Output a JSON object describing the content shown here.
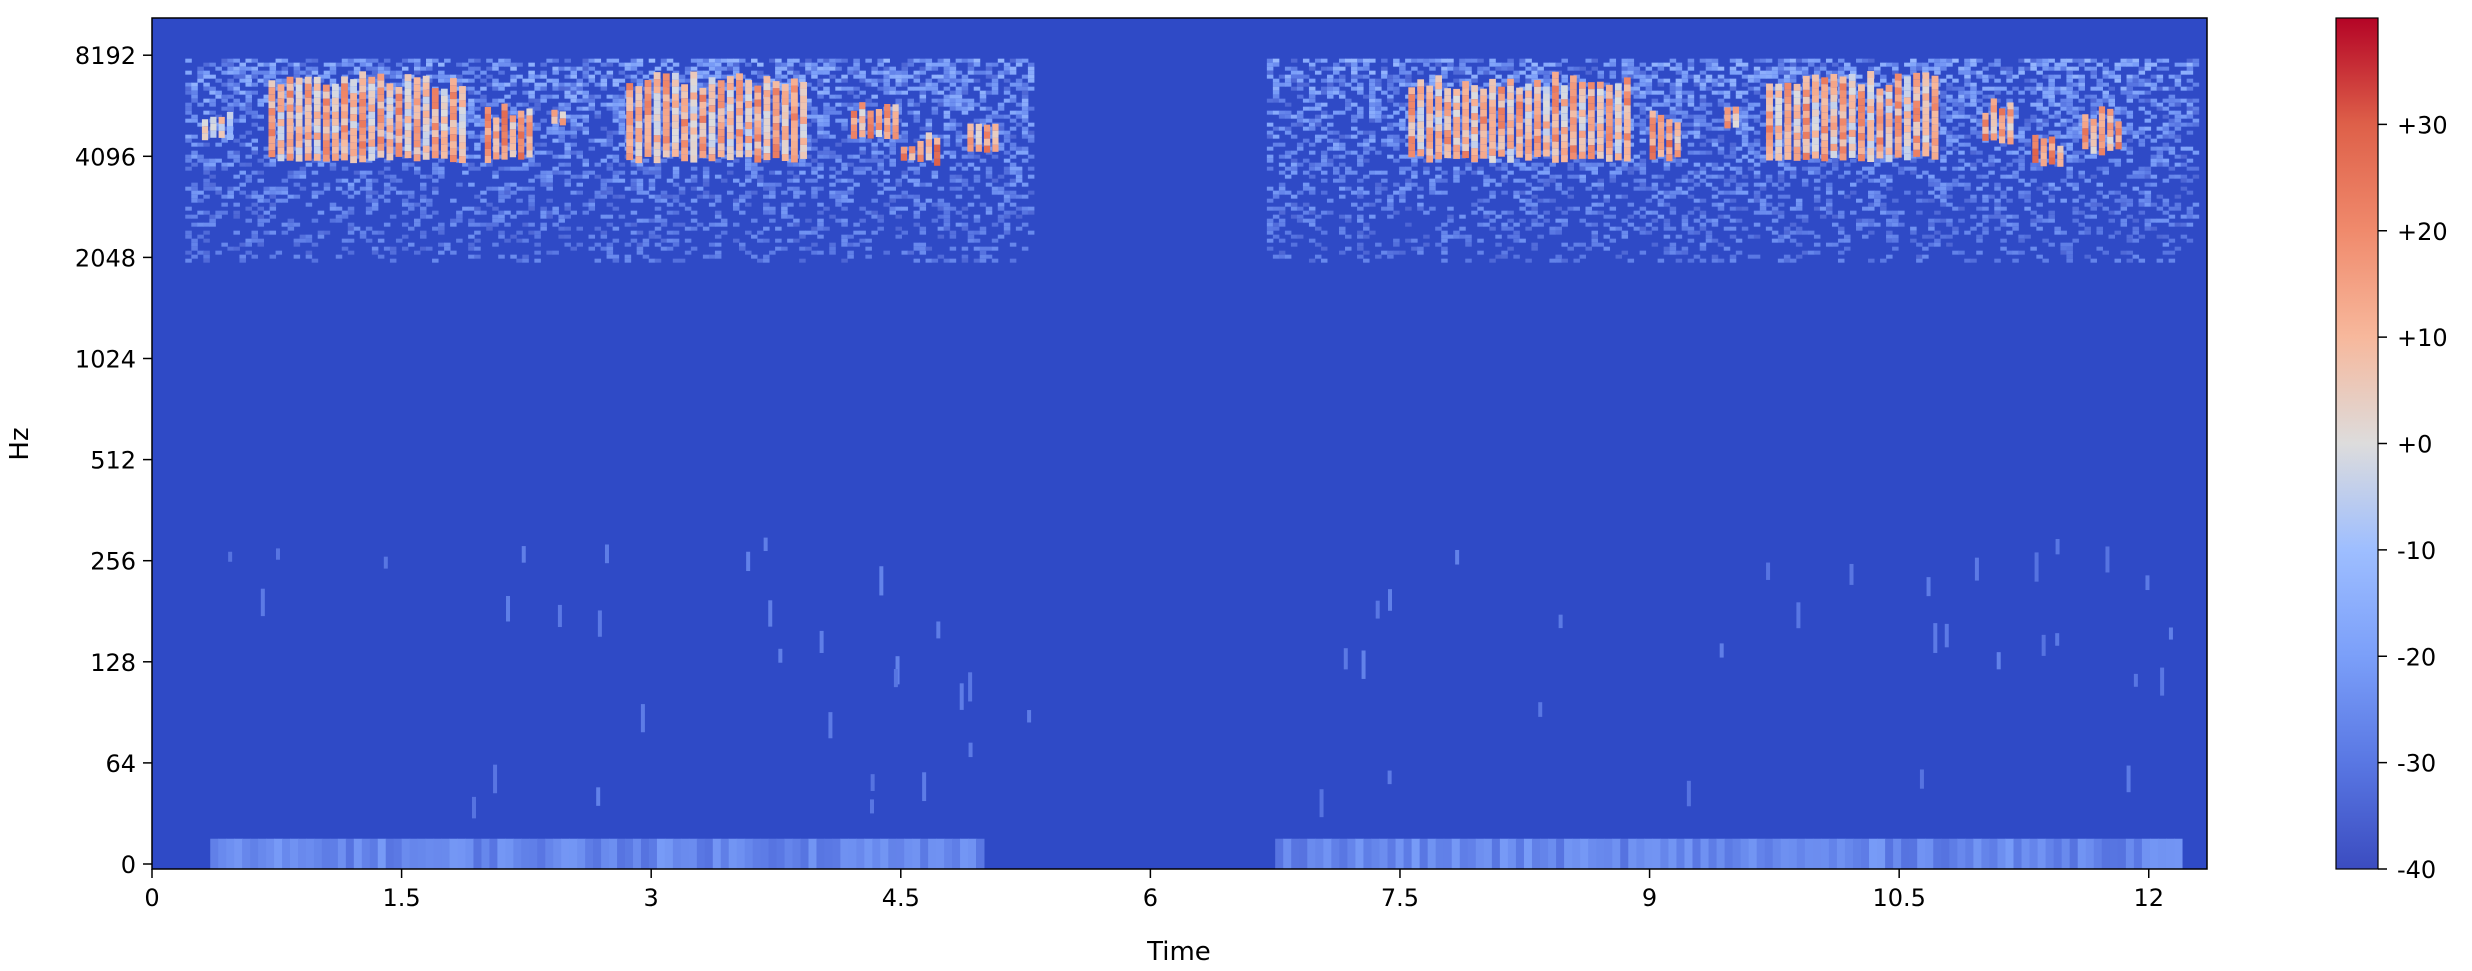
{
  "chart_data": {
    "type": "heatmap",
    "title": "",
    "xlabel": "Time",
    "ylabel": "Hz",
    "xlim": [
      0,
      12.35
    ],
    "x_ticks": [
      0,
      1.5,
      3,
      4.5,
      6,
      7.5,
      9,
      10.5,
      12
    ],
    "x_tick_labels": [
      "0",
      "1.5",
      "3",
      "4.5",
      "6",
      "7.5",
      "9",
      "10.5",
      "12"
    ],
    "y_scale": "symlog (base 2)",
    "y_ticks": [
      0,
      64,
      128,
      256,
      512,
      1024,
      2048,
      4096,
      8192
    ],
    "y_tick_labels": [
      "0",
      "64",
      "128",
      "256",
      "512",
      "1024",
      "2048",
      "4096",
      "8192"
    ],
    "ylim": [
      0,
      11025
    ],
    "colorbar": {
      "colormap": "coolwarm",
      "range": [
        -40,
        40
      ],
      "ticks": [
        -40,
        -30,
        -20,
        -10,
        0,
        10,
        20,
        30
      ],
      "tick_labels": [
        "-40",
        "-30",
        "-20",
        "-10",
        "+0",
        "+10",
        "+20",
        "+30"
      ]
    },
    "background_level_db": -36,
    "segments": [
      {
        "t_start": 0.2,
        "t_end": 5.3,
        "f_low_hz": 2000,
        "f_high_hz": 8000
      },
      {
        "t_start": 6.7,
        "t_end": 12.3,
        "f_low_hz": 2000,
        "f_high_hz": 8000
      }
    ],
    "hot_regions": [
      {
        "t_start": 0.3,
        "t_end": 0.5,
        "f_low_hz": 4600,
        "f_high_hz": 5200,
        "db": 8
      },
      {
        "t_start": 0.7,
        "t_end": 1.9,
        "f_low_hz": 4000,
        "f_high_hz": 6500,
        "db": 18
      },
      {
        "t_start": 2.0,
        "t_end": 2.3,
        "f_low_hz": 4000,
        "f_high_hz": 5200,
        "db": 22
      },
      {
        "t_start": 2.4,
        "t_end": 2.5,
        "f_low_hz": 5000,
        "f_high_hz": 5500,
        "db": 20
      },
      {
        "t_start": 2.85,
        "t_end": 3.95,
        "f_low_hz": 4000,
        "f_high_hz": 6500,
        "db": 18
      },
      {
        "t_start": 4.2,
        "t_end": 4.5,
        "f_low_hz": 4700,
        "f_high_hz": 5400,
        "db": 22
      },
      {
        "t_start": 4.5,
        "t_end": 4.75,
        "f_low_hz": 3900,
        "f_high_hz": 4300,
        "db": 24
      },
      {
        "t_start": 4.9,
        "t_end": 5.1,
        "f_low_hz": 4200,
        "f_high_hz": 5000,
        "db": 22
      },
      {
        "t_start": 7.55,
        "t_end": 8.9,
        "f_low_hz": 4000,
        "f_high_hz": 6500,
        "db": 18
      },
      {
        "t_start": 9.0,
        "t_end": 9.2,
        "f_low_hz": 4000,
        "f_high_hz": 5000,
        "db": 22
      },
      {
        "t_start": 9.45,
        "t_end": 9.55,
        "f_low_hz": 5000,
        "f_high_hz": 5500,
        "db": 22
      },
      {
        "t_start": 9.7,
        "t_end": 10.75,
        "f_low_hz": 4000,
        "f_high_hz": 6500,
        "db": 18
      },
      {
        "t_start": 11.0,
        "t_end": 11.2,
        "f_low_hz": 4500,
        "f_high_hz": 5500,
        "db": 22
      },
      {
        "t_start": 11.3,
        "t_end": 11.5,
        "f_low_hz": 3900,
        "f_high_hz": 4300,
        "db": 24
      },
      {
        "t_start": 11.6,
        "t_end": 11.85,
        "f_low_hz": 4200,
        "f_high_hz": 5200,
        "db": 20
      }
    ],
    "low_band": [
      {
        "t_start": 0.35,
        "t_end": 5.0,
        "f_low_hz": 0,
        "f_high_hz": 16,
        "db": -25
      },
      {
        "t_start": 6.75,
        "t_end": 12.2,
        "f_low_hz": 0,
        "f_high_hz": 16,
        "db": -25
      }
    ]
  }
}
